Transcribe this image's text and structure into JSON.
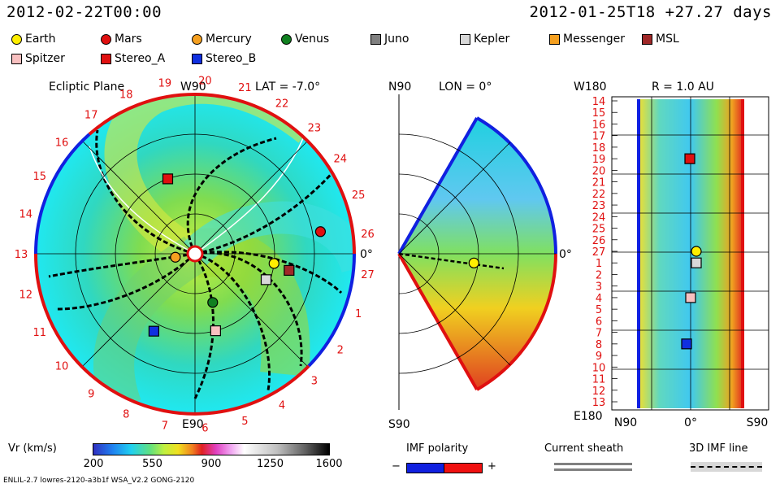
{
  "header": {
    "left_timestamp": "2012-02-22T00:00",
    "right_info": "2012-01-25T18 +27.27 days"
  },
  "legend": {
    "items": [
      {
        "name": "Earth",
        "shape": "circle",
        "color": "#ffee00"
      },
      {
        "name": "Mars",
        "shape": "circle",
        "color": "#e01010"
      },
      {
        "name": "Mercury",
        "shape": "circle",
        "color": "#f5a020"
      },
      {
        "name": "Venus",
        "shape": "circle",
        "color": "#108020"
      },
      {
        "name": "Juno",
        "shape": "square",
        "color": "#808080"
      },
      {
        "name": "Kepler",
        "shape": "square",
        "color": "#d8d8d8"
      },
      {
        "name": "Messenger",
        "shape": "square",
        "color": "#f5a020"
      },
      {
        "name": "MSL",
        "shape": "square",
        "color": "#a02828"
      },
      {
        "name": "Spitzer",
        "shape": "square",
        "color": "#f8c0c0"
      },
      {
        "name": "Stereo_A",
        "shape": "square",
        "color": "#e01010"
      },
      {
        "name": "Stereo_B",
        "shape": "square",
        "color": "#1030e0"
      }
    ]
  },
  "chart_data": [
    {
      "type": "polar-map",
      "title": "Ecliptic Plane",
      "top_label": "W90",
      "bottom_label": "E90",
      "right_label": "0°",
      "lat_label": "LAT = -7.0°",
      "rotation_labels": [
        "19",
        "20",
        "21",
        "22",
        "23",
        "24",
        "25",
        "26",
        "27",
        "1",
        "2",
        "3",
        "4",
        "5",
        "6",
        "7",
        "8",
        "9",
        "10",
        "11",
        "12",
        "13",
        "14",
        "15",
        "16",
        "17",
        "18"
      ],
      "bodies": [
        {
          "name": "Earth",
          "shape": "circle",
          "color": "#ffee00",
          "r_au": 1.0,
          "lon_deg": -7
        },
        {
          "name": "Mars",
          "shape": "circle",
          "color": "#e01010",
          "r_au": 1.6,
          "lon_deg": 10
        },
        {
          "name": "Mercury",
          "shape": "circle",
          "color": "#f5a020",
          "r_au": 0.25,
          "lon_deg": -170
        },
        {
          "name": "Venus",
          "shape": "circle",
          "color": "#108020",
          "r_au": 0.65,
          "lon_deg": -70
        },
        {
          "name": "Kepler",
          "shape": "square",
          "color": "#d8d8d8",
          "r_au": 0.95,
          "lon_deg": -20
        },
        {
          "name": "MSL",
          "shape": "square",
          "color": "#a02828",
          "r_au": 1.2,
          "lon_deg": -10
        },
        {
          "name": "Spitzer",
          "shape": "square",
          "color": "#f8c0c0",
          "r_au": 1.0,
          "lon_deg": -75
        },
        {
          "name": "Stereo_A",
          "shape": "square",
          "color": "#e01010",
          "r_au": 1.0,
          "lon_deg": 110
        },
        {
          "name": "Stereo_B",
          "shape": "square",
          "color": "#1030e0",
          "r_au": 1.1,
          "lon_deg": -118
        }
      ]
    },
    {
      "type": "meridional-map",
      "top_label": "N90",
      "bottom_label": "S90",
      "lon_label": "LON = 0°",
      "right_label": "0°",
      "bodies": [
        {
          "name": "Earth",
          "shape": "circle",
          "color": "#ffee00",
          "r_au": 1.0,
          "lat_deg": -7
        }
      ]
    },
    {
      "type": "synoptic-map",
      "title": "R = 1.0 AU",
      "top_left_label": "W180",
      "bottom_left_label": "E180",
      "x_labels": [
        "N90",
        "0°",
        "S90"
      ],
      "y_labels": [
        "14",
        "15",
        "16",
        "17",
        "18",
        "19",
        "20",
        "21",
        "22",
        "23",
        "24",
        "25",
        "26",
        "27",
        "1",
        "2",
        "3",
        "4",
        "5",
        "6",
        "7",
        "8",
        "9",
        "10",
        "11",
        "12",
        "13"
      ],
      "bodies": [
        {
          "name": "Stereo_A",
          "shape": "square",
          "color": "#e01010",
          "row": "19"
        },
        {
          "name": "Earth",
          "shape": "circle",
          "color": "#ffee00",
          "row": "27"
        },
        {
          "name": "Kepler",
          "shape": "square",
          "color": "#d8d8d8",
          "row": "1"
        },
        {
          "name": "Spitzer",
          "shape": "square",
          "color": "#f8c0c0",
          "row": "4"
        },
        {
          "name": "Stereo_B",
          "shape": "square",
          "color": "#1030e0",
          "row": "8"
        }
      ]
    }
  ],
  "colorbar": {
    "label": "Vr (km/s)",
    "ticks": [
      "200",
      "550",
      "900",
      "1250",
      "1600"
    ],
    "min": 200,
    "max": 1600
  },
  "imf_polarity": {
    "title": "IMF polarity",
    "minus": "−",
    "plus": "+",
    "neg_color": "#1020e0",
    "pos_color": "#f01010"
  },
  "current_sheath": {
    "title": "Current sheath"
  },
  "imf_line": {
    "title": "3D IMF line"
  },
  "footer": {
    "text": "ENLIL-2.7 lowres-2120-a3b1f WSA_V2.2 GONG-2120"
  }
}
